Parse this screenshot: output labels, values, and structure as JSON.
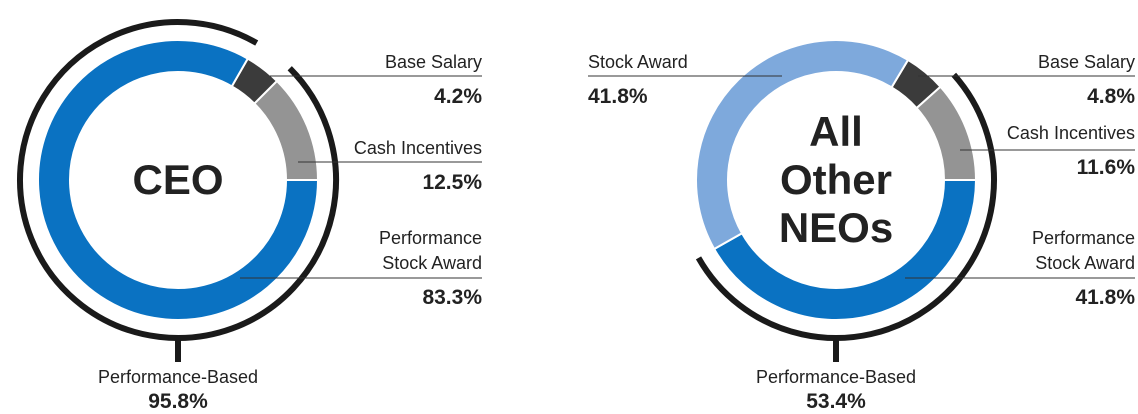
{
  "chart_data": [
    {
      "type": "pie",
      "title": "CEO",
      "categories": [
        "Base Salary",
        "Cash Incentives",
        "Performance Stock Award"
      ],
      "values": [
        4.2,
        12.5,
        83.3
      ],
      "value_labels": [
        "4.2%",
        "12.5%",
        "83.3%"
      ],
      "colors": [
        "#3b3b3b",
        "#949494",
        "#0a72c2"
      ],
      "performance_based": {
        "label": "Performance-Based",
        "value": 95.8,
        "value_label": "95.8%"
      }
    },
    {
      "type": "pie",
      "title": "All Other NEOs",
      "categories": [
        "Base Salary",
        "Cash Incentives",
        "Performance Stock Award",
        "Stock Award"
      ],
      "values": [
        4.8,
        11.6,
        41.8,
        41.8
      ],
      "value_labels": [
        "4.8%",
        "11.6%",
        "41.8%",
        "41.8%"
      ],
      "colors": [
        "#3b3b3b",
        "#949494",
        "#0a72c2",
        "#7ea9dc"
      ],
      "performance_based": {
        "label": "Performance-Based",
        "value": 53.4,
        "value_label": "53.4%"
      }
    }
  ]
}
